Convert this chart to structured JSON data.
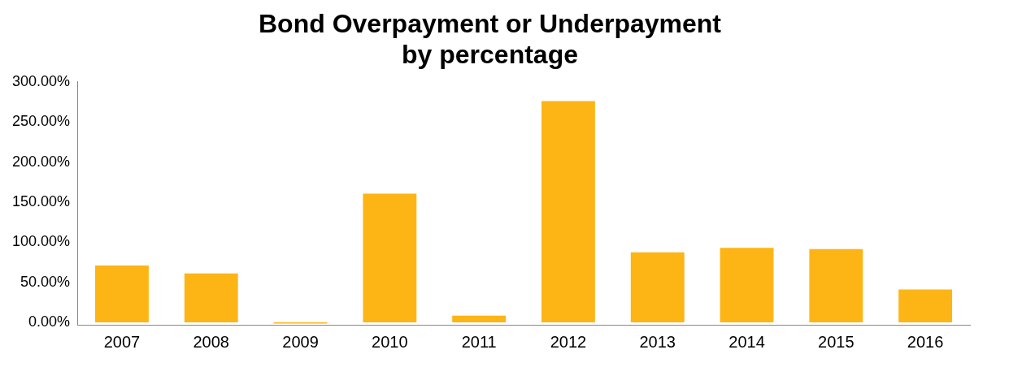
{
  "chart_data": {
    "type": "bar",
    "title": [
      "Bond Overpayment or Underpayment",
      "by percentage"
    ],
    "categories": [
      "2007",
      "2008",
      "2009",
      "2010",
      "2011",
      "2012",
      "2013",
      "2014",
      "2015",
      "2016"
    ],
    "values": [
      71,
      61,
      -1.5,
      160.5,
      8.5,
      276,
      87.5,
      93,
      91.5,
      41
    ],
    "color": "#fdb515",
    "ylim": [
      -3,
      300
    ],
    "yticks": [
      {
        "value": 0,
        "label": "0.00%"
      },
      {
        "value": 50,
        "label": "50.00%"
      },
      {
        "value": 100,
        "label": "100.00%"
      },
      {
        "value": 150,
        "label": "150.00%"
      },
      {
        "value": 200,
        "label": "200.00%"
      },
      {
        "value": 250,
        "label": "250.00%"
      },
      {
        "value": 300,
        "label": "300.00%"
      }
    ],
    "grid": false,
    "legend": false
  }
}
